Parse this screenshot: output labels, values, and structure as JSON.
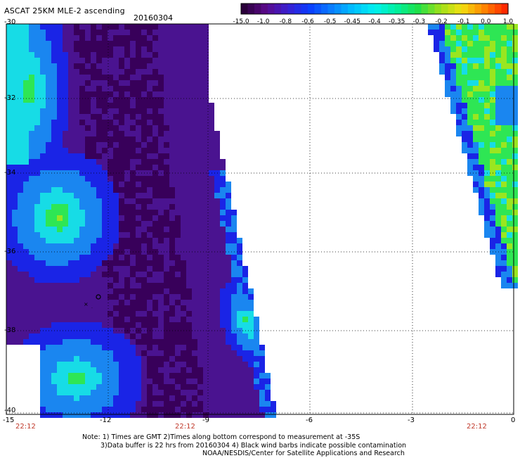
{
  "header": {
    "title": "ASCAT 25KM MLE-2 ascending",
    "date": "20160304"
  },
  "colorbar": {
    "labels": [
      "-15.0",
      "-1.0",
      "-0.8",
      "-0.6",
      "-0.5",
      "-0.45",
      "-0.4",
      "-0.35",
      "-0.3",
      "-0.2",
      "-0.1",
      "0.0",
      "1.0"
    ],
    "colors": [
      "#2a003a",
      "#5b0a8a",
      "#3a1fd0",
      "#0a3cff",
      "#0a7dff",
      "#00bfff",
      "#00f0f0",
      "#00f0a0",
      "#20e04a",
      "#9ae01a",
      "#f2e010",
      "#ff8a00",
      "#ff2a00"
    ]
  },
  "axes": {
    "lat_labels": [
      "-30",
      "-32",
      "-34",
      "-36",
      "-38",
      "-40"
    ],
    "lon_labels": [
      "-15",
      "-12",
      "-9",
      "-6",
      "-3",
      "0"
    ],
    "time_labels": [
      "22:12",
      "22:12",
      "22:12"
    ]
  },
  "notes": {
    "line1": "Note: 1) Times are GMT 2)Times along bottom correspond to measurement at -35S",
    "line2": "3)Data buffer is 22 hrs from 20160304 4) Black wind barbs indicate possible contamination",
    "line3": "NOAA/NESDIS/Center for Satellite Applications and Research"
  },
  "colors": {
    "deep": "#4a1390",
    "dark": "#38005a",
    "blue": "#1a24e6",
    "cyan": "#17dce6",
    "green": "#2ee654",
    "lime": "#9ae620"
  }
}
